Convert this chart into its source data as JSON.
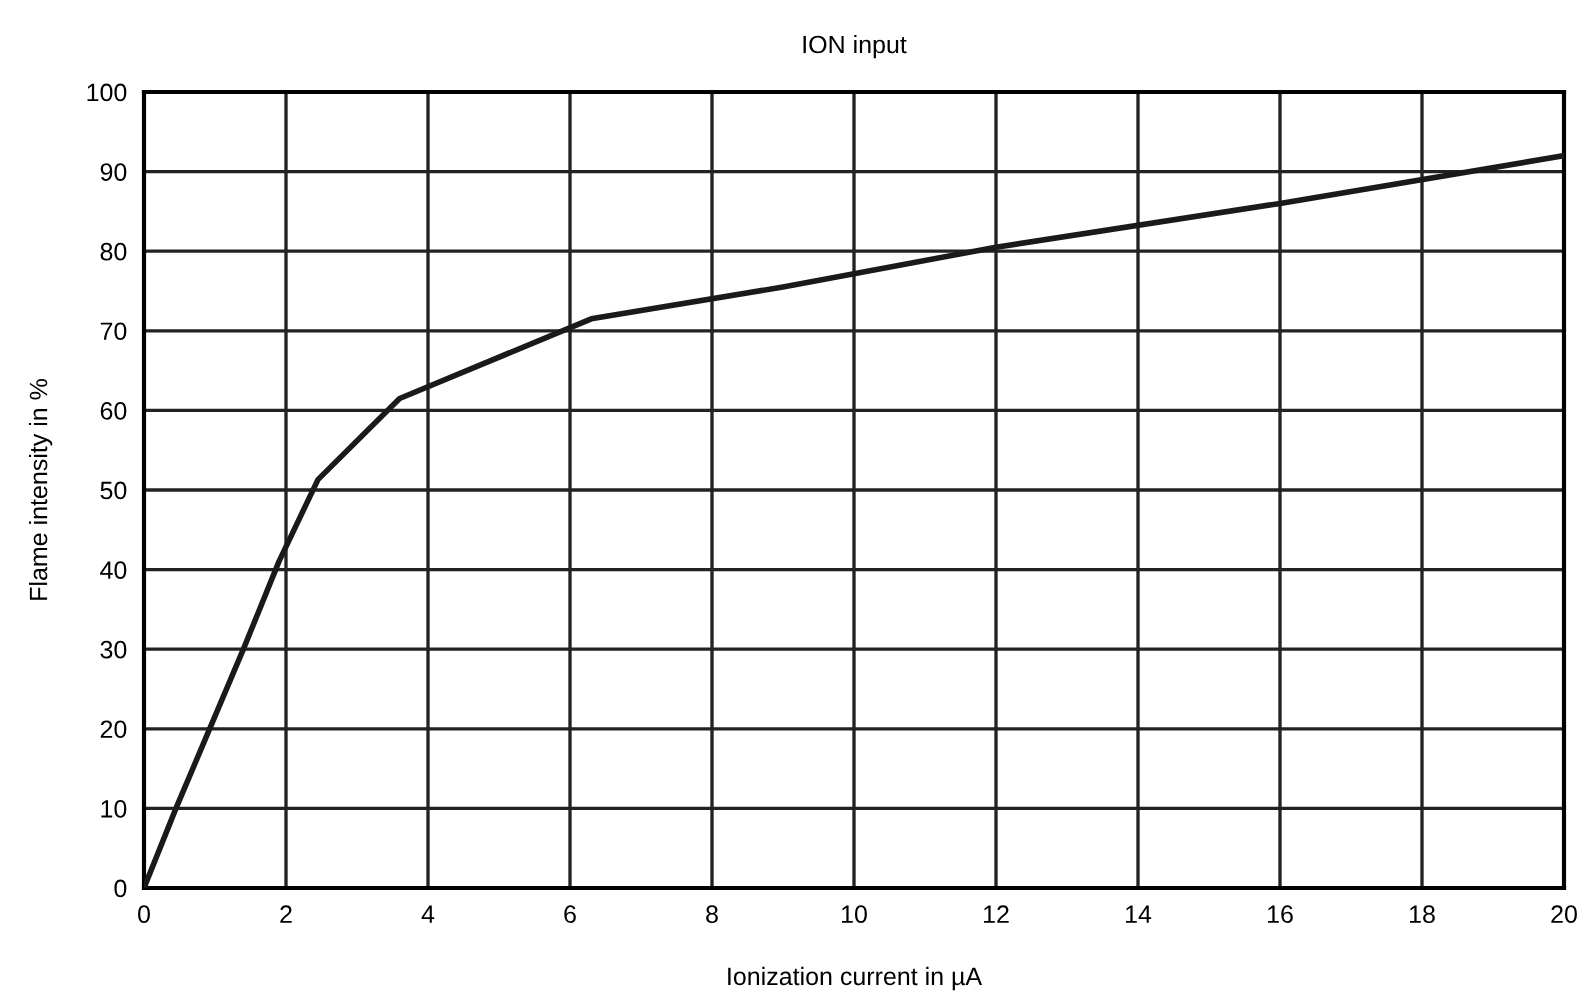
{
  "chart_data": {
    "type": "line",
    "title": "ION input",
    "xlabel": "Ionization current in µA",
    "ylabel": "Flame intensity in %",
    "x": [
      0,
      0.45,
      1.4,
      1.9,
      2.45,
      3.6,
      6.3,
      9,
      12,
      16,
      20
    ],
    "series": [
      {
        "color": "#1a1a1a",
        "values": [
          0,
          10,
          30,
          41,
          51.3,
          61.5,
          71.5,
          75.5,
          80.5,
          86,
          92
        ]
      }
    ],
    "xlim": [
      0,
      20
    ],
    "ylim": [
      0,
      100
    ],
    "xticks": [
      0,
      2,
      4,
      6,
      8,
      10,
      12,
      14,
      16,
      18,
      20
    ],
    "yticks": [
      0,
      10,
      20,
      30,
      40,
      50,
      60,
      70,
      80,
      90,
      100
    ],
    "grid": true,
    "marker": "none",
    "line_style": "solid",
    "legend": false
  }
}
